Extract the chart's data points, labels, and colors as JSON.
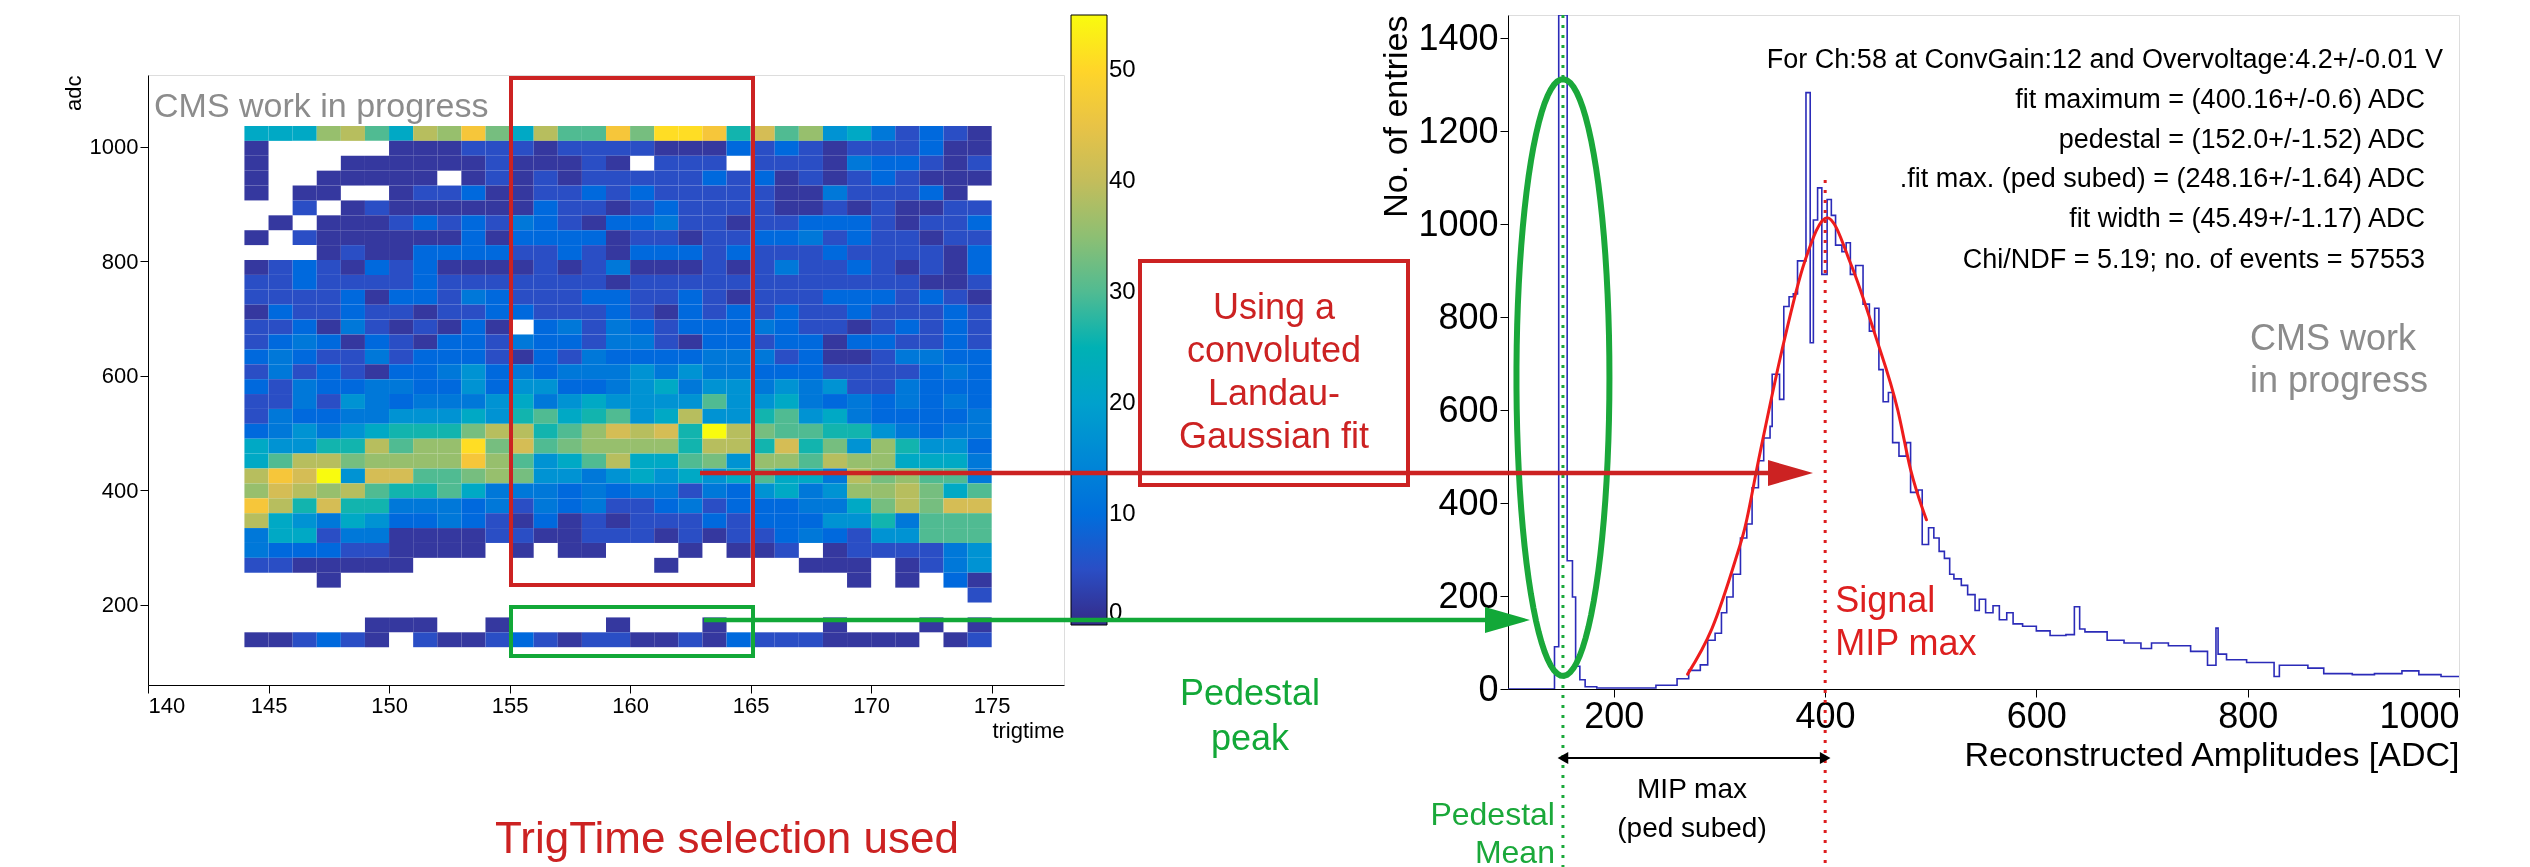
{
  "chart_data": [
    {
      "type": "heatmap",
      "xlabel": "trigtime",
      "ylabel": "adc",
      "x": [
        144.5,
        145.5,
        146.5,
        147.5,
        148.5,
        149.5,
        150.5,
        151.5,
        152.5,
        153.5,
        154.5,
        155.5,
        156.5,
        157.5,
        158.5,
        159.5,
        160.5,
        161.5,
        162.5,
        163.5,
        164.5,
        165.5,
        166.5,
        167.5,
        168.5,
        169.5,
        170.5,
        171.5,
        172.5,
        173.5,
        174.5
      ],
      "y": [
        1023,
        997,
        971,
        945,
        919,
        893,
        867,
        841,
        815,
        789,
        763,
        737,
        711,
        685,
        659,
        633,
        607,
        581,
        555,
        529,
        503,
        477,
        451,
        425,
        399,
        373,
        347,
        321,
        295,
        269,
        243,
        217,
        165,
        139
      ],
      "cells": [
        [
          22,
          22,
          22,
          36,
          39,
          30,
          22,
          39,
          36,
          47,
          33,
          22,
          39,
          30,
          30,
          47,
          33,
          51,
          51,
          47,
          26,
          42,
          30,
          36,
          17,
          22,
          12,
          5,
          9,
          5,
          2
        ],
        [
          2,
          null,
          null,
          null,
          null,
          null,
          2,
          2,
          2,
          5,
          5,
          5,
          2,
          5,
          5,
          5,
          5,
          2,
          2,
          2,
          9,
          5,
          9,
          5,
          2,
          5,
          5,
          5,
          9,
          2,
          2
        ],
        [
          2,
          null,
          null,
          null,
          2,
          2,
          2,
          2,
          2,
          2,
          5,
          2,
          2,
          2,
          5,
          2,
          null,
          5,
          5,
          5,
          null,
          5,
          5,
          5,
          2,
          12,
          9,
          9,
          5,
          2,
          5
        ],
        [
          2,
          null,
          null,
          2,
          2,
          2,
          2,
          2,
          null,
          2,
          5,
          2,
          5,
          2,
          5,
          5,
          5,
          5,
          5,
          9,
          5,
          9,
          2,
          5,
          2,
          5,
          9,
          5,
          2,
          2,
          2
        ],
        [
          2,
          null,
          2,
          2,
          null,
          null,
          2,
          5,
          5,
          9,
          2,
          2,
          5,
          5,
          9,
          5,
          9,
          5,
          5,
          5,
          5,
          5,
          2,
          2,
          12,
          5,
          5,
          5,
          9,
          2,
          null
        ],
        [
          null,
          null,
          5,
          null,
          2,
          5,
          2,
          2,
          2,
          2,
          2,
          2,
          9,
          5,
          5,
          2,
          5,
          9,
          5,
          5,
          5,
          5,
          2,
          2,
          5,
          2,
          5,
          2,
          2,
          5,
          5
        ],
        [
          null,
          2,
          null,
          2,
          2,
          2,
          5,
          9,
          5,
          9,
          5,
          12,
          9,
          5,
          2,
          9,
          9,
          12,
          5,
          5,
          2,
          5,
          5,
          9,
          9,
          9,
          5,
          2,
          5,
          5,
          9
        ],
        [
          2,
          null,
          5,
          2,
          2,
          2,
          2,
          2,
          2,
          9,
          2,
          9,
          9,
          9,
          9,
          2,
          5,
          5,
          2,
          5,
          5,
          9,
          9,
          12,
          5,
          9,
          5,
          5,
          2,
          5,
          5
        ],
        [
          null,
          null,
          null,
          2,
          5,
          2,
          2,
          9,
          9,
          9,
          9,
          5,
          5,
          9,
          5,
          2,
          9,
          9,
          9,
          5,
          9,
          5,
          5,
          5,
          9,
          5,
          5,
          5,
          5,
          2,
          9
        ],
        [
          2,
          5,
          9,
          5,
          2,
          9,
          5,
          9,
          2,
          2,
          2,
          2,
          5,
          2,
          5,
          12,
          2,
          2,
          2,
          5,
          2,
          5,
          12,
          5,
          5,
          9,
          5,
          2,
          5,
          2,
          9
        ],
        [
          5,
          5,
          9,
          5,
          5,
          5,
          5,
          9,
          5,
          5,
          5,
          5,
          5,
          5,
          5,
          2,
          5,
          5,
          5,
          5,
          5,
          5,
          5,
          5,
          5,
          5,
          5,
          5,
          2,
          2,
          5
        ],
        [
          5,
          5,
          5,
          5,
          9,
          2,
          9,
          9,
          5,
          12,
          9,
          5,
          5,
          5,
          9,
          9,
          5,
          5,
          9,
          5,
          2,
          5,
          5,
          5,
          9,
          9,
          9,
          5,
          9,
          5,
          2
        ],
        [
          2,
          9,
          5,
          5,
          9,
          5,
          5,
          2,
          5,
          5,
          9,
          9,
          5,
          5,
          5,
          9,
          5,
          2,
          9,
          5,
          9,
          5,
          9,
          5,
          5,
          9,
          5,
          5,
          5,
          9,
          5
        ],
        [
          5,
          5,
          9,
          2,
          12,
          5,
          2,
          5,
          2,
          9,
          2,
          null,
          9,
          12,
          5,
          12,
          9,
          5,
          9,
          9,
          9,
          12,
          9,
          5,
          5,
          2,
          5,
          9,
          5,
          9,
          5
        ],
        [
          5,
          9,
          12,
          9,
          2,
          9,
          5,
          2,
          9,
          9,
          5,
          12,
          9,
          9,
          5,
          12,
          12,
          5,
          2,
          9,
          9,
          5,
          9,
          9,
          2,
          9,
          9,
          5,
          5,
          9,
          5
        ],
        [
          9,
          12,
          9,
          5,
          5,
          12,
          5,
          9,
          9,
          9,
          5,
          2,
          9,
          5,
          12,
          9,
          9,
          9,
          9,
          12,
          12,
          12,
          5,
          9,
          2,
          2,
          5,
          12,
          12,
          9,
          9
        ],
        [
          5,
          12,
          5,
          9,
          5,
          2,
          9,
          9,
          12,
          17,
          9,
          12,
          9,
          12,
          12,
          12,
          17,
          12,
          17,
          12,
          12,
          9,
          9,
          9,
          5,
          5,
          5,
          5,
          9,
          12,
          9
        ],
        [
          9,
          5,
          12,
          9,
          9,
          12,
          12,
          9,
          9,
          17,
          9,
          17,
          17,
          9,
          9,
          12,
          17,
          22,
          12,
          17,
          17,
          12,
          17,
          12,
          17,
          5,
          5,
          12,
          9,
          9,
          9
        ],
        [
          5,
          5,
          12,
          5,
          17,
          12,
          9,
          12,
          12,
          12,
          17,
          22,
          12,
          17,
          22,
          17,
          17,
          17,
          17,
          30,
          17,
          17,
          22,
          12,
          9,
          12,
          9,
          12,
          9,
          12,
          9
        ],
        [
          5,
          12,
          9,
          9,
          12,
          12,
          17,
          17,
          17,
          22,
          17,
          26,
          30,
          22,
          26,
          30,
          17,
          22,
          39,
          17,
          17,
          26,
          30,
          17,
          22,
          12,
          9,
          9,
          9,
          9,
          12
        ],
        [
          9,
          12,
          17,
          12,
          17,
          22,
          26,
          26,
          26,
          33,
          39,
          39,
          26,
          30,
          36,
          42,
          39,
          42,
          26,
          55,
          39,
          33,
          30,
          30,
          26,
          26,
          17,
          12,
          9,
          12,
          12
        ],
        [
          22,
          17,
          17,
          26,
          26,
          39,
          30,
          36,
          36,
          51,
          33,
          42,
          30,
          33,
          36,
          36,
          36,
          36,
          26,
          39,
          39,
          26,
          42,
          26,
          33,
          17,
          36,
          26,
          17,
          17,
          9
        ],
        [
          22,
          30,
          39,
          39,
          33,
          36,
          36,
          36,
          36,
          47,
          36,
          30,
          17,
          22,
          30,
          39,
          22,
          22,
          30,
          33,
          17,
          36,
          36,
          30,
          39,
          36,
          36,
          22,
          22,
          22,
          12
        ],
        [
          39,
          47,
          42,
          55,
          17,
          42,
          42,
          30,
          30,
          33,
          36,
          33,
          17,
          17,
          12,
          17,
          22,
          17,
          22,
          17,
          22,
          30,
          22,
          22,
          12,
          39,
          33,
          36,
          30,
          30,
          12
        ],
        [
          36,
          42,
          39,
          36,
          39,
          30,
          26,
          26,
          30,
          22,
          12,
          12,
          12,
          9,
          12,
          9,
          12,
          12,
          5,
          12,
          9,
          17,
          22,
          12,
          17,
          36,
          36,
          39,
          33,
          22,
          30
        ],
        [
          47,
          39,
          26,
          42,
          26,
          26,
          12,
          12,
          12,
          9,
          12,
          5,
          12,
          9,
          12,
          5,
          5,
          9,
          12,
          5,
          9,
          9,
          9,
          12,
          12,
          22,
          33,
          39,
          33,
          42,
          42
        ],
        [
          39,
          22,
          17,
          12,
          22,
          17,
          9,
          9,
          12,
          9,
          5,
          2,
          9,
          2,
          5,
          2,
          5,
          5,
          5,
          9,
          5,
          9,
          9,
          9,
          17,
          17,
          26,
          12,
          30,
          30,
          30
        ],
        [
          12,
          22,
          22,
          5,
          12,
          12,
          2,
          2,
          2,
          2,
          5,
          5,
          2,
          2,
          5,
          5,
          5,
          2,
          5,
          2,
          5,
          5,
          9,
          12,
          9,
          5,
          17,
          17,
          30,
          30,
          30
        ],
        [
          12,
          9,
          9,
          9,
          5,
          5,
          2,
          2,
          2,
          2,
          null,
          2,
          null,
          2,
          2,
          null,
          null,
          null,
          2,
          null,
          2,
          2,
          5,
          null,
          2,
          5,
          5,
          5,
          5,
          12,
          17
        ],
        [
          5,
          5,
          2,
          2,
          2,
          2,
          2,
          null,
          null,
          null,
          null,
          null,
          null,
          null,
          null,
          null,
          null,
          2,
          null,
          null,
          null,
          null,
          null,
          2,
          2,
          2,
          null,
          2,
          5,
          12,
          17
        ],
        [
          null,
          null,
          null,
          2,
          null,
          null,
          null,
          null,
          null,
          null,
          null,
          null,
          null,
          null,
          null,
          null,
          null,
          null,
          null,
          null,
          null,
          null,
          null,
          null,
          null,
          2,
          null,
          2,
          null,
          9,
          2
        ],
        [
          null,
          null,
          null,
          null,
          null,
          null,
          null,
          null,
          null,
          null,
          null,
          null,
          null,
          null,
          null,
          null,
          null,
          null,
          null,
          null,
          null,
          null,
          null,
          null,
          null,
          null,
          null,
          null,
          null,
          null,
          5
        ],
        [
          null,
          null,
          null,
          null,
          null,
          2,
          2,
          2,
          null,
          null,
          2,
          null,
          null,
          null,
          null,
          2,
          null,
          null,
          null,
          2,
          null,
          null,
          null,
          null,
          2,
          null,
          null,
          null,
          2,
          null,
          2
        ],
        [
          2,
          2,
          5,
          9,
          5,
          2,
          null,
          5,
          2,
          2,
          5,
          9,
          5,
          2,
          5,
          5,
          2,
          2,
          5,
          2,
          9,
          5,
          5,
          5,
          2,
          2,
          2,
          2,
          null,
          2,
          5
        ]
      ],
      "clim": [
        0,
        55
      ],
      "cticks": [
        0,
        10,
        20,
        30,
        40,
        50
      ],
      "colors": [
        "#352a87",
        "#0f5cdd",
        "#1481d6",
        "#06a4ca",
        "#2eb7a4",
        "#87bf77",
        "#d1bb59",
        "#fec832",
        "#f9fb0e"
      ],
      "xlim": [
        140,
        178
      ],
      "xticks": [
        140,
        145,
        150,
        155,
        160,
        165,
        170,
        175
      ],
      "ylim": [
        60,
        1125
      ],
      "yticks": [
        200,
        400,
        600,
        800,
        1000
      ],
      "annotations": [
        "CMS work in progress",
        "TrigTime selection used"
      ]
    },
    {
      "type": "histogram",
      "xlabel": "Reconstructed Amplitudes [ADC]",
      "ylabel": "No. of entries",
      "color": "#2b2bb8",
      "bins": [
        100,
        144,
        148,
        156,
        161,
        164,
        168,
        173,
        184,
        240,
        260,
        271,
        282,
        289,
        296,
        302,
        307,
        313,
        320,
        326,
        331,
        337,
        342,
        348,
        350,
        357,
        361,
        366,
        370,
        374,
        382,
        386,
        389,
        393,
        397,
        402,
        406,
        410,
        416,
        420,
        424,
        429,
        436,
        442,
        447,
        451,
        455,
        460,
        464,
        470,
        477,
        481,
        488,
        492,
        498,
        503,
        508,
        513,
        518,
        522,
        529,
        535,
        542,
        546,
        552,
        559,
        565,
        572,
        578,
        587,
        600,
        613,
        628,
        636,
        641,
        646,
        667,
        683,
        699,
        709,
        725,
        746,
        762,
        770,
        772,
        780,
        799,
        825,
        830,
        857,
        872,
        899,
        920,
        946,
        962,
        983,
        1000
      ],
      "values": [
        0,
        91,
        1450,
        276,
        198,
        49,
        20,
        5,
        2,
        8,
        22,
        40,
        52,
        105,
        120,
        164,
        198,
        247,
        325,
        355,
        433,
        491,
        540,
        565,
        677,
        623,
        823,
        844,
        850,
        921,
        1283,
        745,
        1009,
        1078,
        892,
        1053,
        1019,
        955,
        941,
        960,
        892,
        911,
        828,
        770,
        819,
        687,
        618,
        638,
        530,
        501,
        530,
        423,
        428,
        311,
        347,
        325,
        296,
        281,
        247,
        237,
        223,
        203,
        169,
        193,
        164,
        179,
        149,
        164,
        140,
        135,
        125,
        115,
        117,
        177,
        129,
        123,
        105,
        99,
        87,
        99,
        93,
        81,
        51,
        131,
        75,
        63,
        57,
        27,
        51,
        45,
        33,
        31,
        33,
        39,
        31,
        27
      ],
      "series": [
        {
          "type": "line",
          "color": "#ee1c1c",
          "line_style": "solid",
          "x": [
            270,
            293,
            315,
            324,
            337,
            359,
            381,
            402,
            425,
            447,
            469,
            481,
            496
          ],
          "values": [
            32,
            130,
            276,
            345,
            491,
            726,
            921,
            1014,
            911,
            765,
            599,
            472,
            364
          ]
        }
      ],
      "xlim": [
        100,
        1000
      ],
      "xticks": [
        200,
        400,
        600,
        800,
        1000
      ],
      "ylim": [
        0,
        1450
      ],
      "yticks": [
        0,
        200,
        400,
        600,
        800,
        1000,
        1200,
        1400
      ],
      "ref_lines": [
        {
          "axis": "x",
          "value": 152,
          "label": "Pedestal\nMean",
          "color": "#1aa83a",
          "line_style": "dotted"
        },
        {
          "axis": "x",
          "value": 400.16,
          "label": "Signal\nMIP max",
          "color": "#dd1f1f",
          "line_style": "dotted"
        }
      ],
      "annotations": [
        "For Ch:58 at ConvGain:12 and Overvoltage:4.2+/-0.01 V",
        "fit maximum = (400.16+/-0.6) ADC",
        "pedestal = (152.0+/-1.52) ADC",
        ".fit max. (ped subed) = (248.16+/-1.64) ADC",
        "fit width = (45.49+/-1.17) ADC",
        "Chi/NDF = 5.19; no. of events = 57553",
        "CMS work\nin progress",
        "Using a\nconvoluted\nLandau-\nGaussian fit",
        "Pedestal\npeak",
        "MIP max\n(ped subed)"
      ]
    }
  ]
}
